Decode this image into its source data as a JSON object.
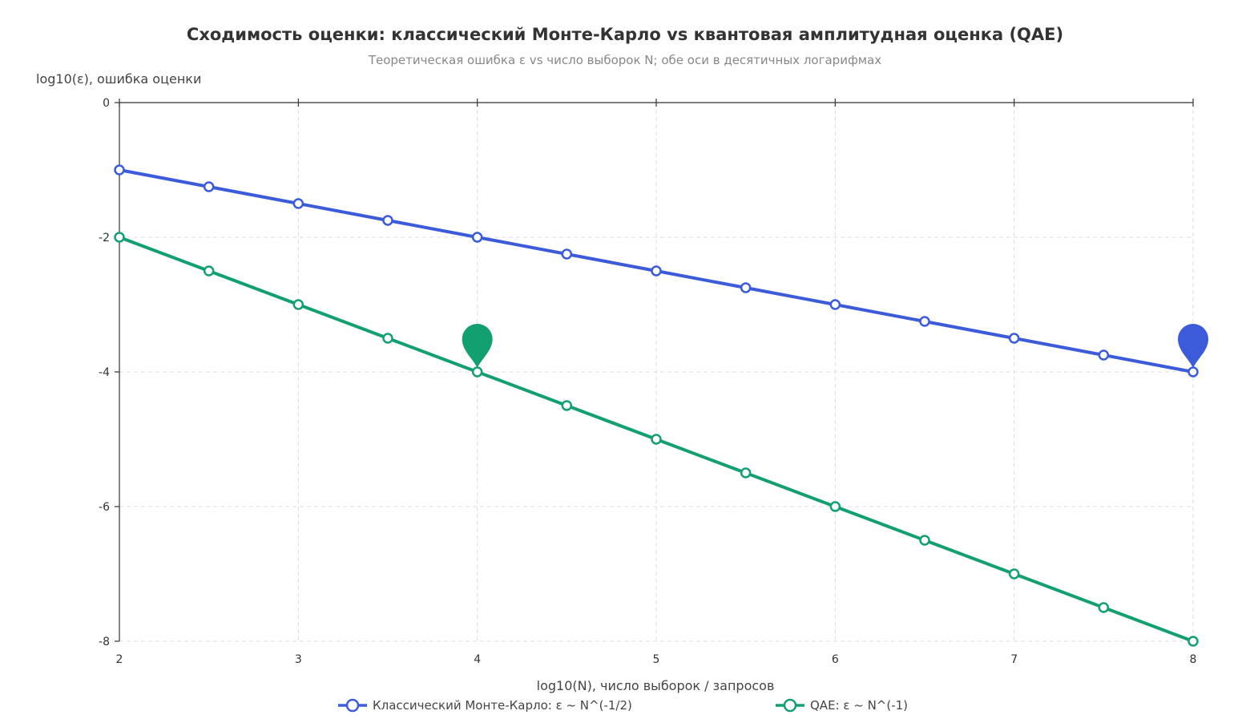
{
  "chart_data": {
    "type": "line",
    "title": "Сходимость оценки: классический Монте-Карло vs квантовая амплитудная оценка (QAE)",
    "subtitle": "Теоретическая ошибка ε vs число выборок N; обе оси в десятичных логарифмах",
    "xlabel": "log10(N), число выборок / запросов",
    "ylabel": "log10(ε), ошибка оценки",
    "xlim": [
      2,
      8
    ],
    "ylim": [
      -8,
      0
    ],
    "x_ticks": [
      2,
      3,
      4,
      5,
      6,
      7,
      8
    ],
    "y_ticks": [
      0,
      -2,
      -4,
      -6,
      -8
    ],
    "grid": true,
    "legend_position": "bottom-center",
    "x": [
      2,
      2.5,
      3,
      3.5,
      4,
      4.5,
      5,
      5.5,
      6,
      6.5,
      7,
      7.5,
      8
    ],
    "series": [
      {
        "name": "Классический Монте-Карло: ε ~ N^(-1/2)",
        "color": "#3b5bdb",
        "values": [
          -1,
          -1.25,
          -1.5,
          -1.75,
          -2,
          -2.25,
          -2.5,
          -2.75,
          -3,
          -3.25,
          -3.5,
          -3.75,
          -4
        ]
      },
      {
        "name": "QAE: ε ~ N^(-1)",
        "color": "#12a071",
        "values": [
          -2,
          -2.5,
          -3,
          -3.5,
          -4,
          -4.5,
          -5,
          -5.5,
          -6,
          -6.5,
          -7,
          -7.5,
          -8
        ]
      }
    ],
    "markers": [
      {
        "series": 1,
        "x": 4,
        "y": -4,
        "icon": "map-pin-icon",
        "color": "#12a071"
      },
      {
        "series": 0,
        "x": 8,
        "y": -4,
        "icon": "map-pin-icon",
        "color": "#3b5bdb"
      }
    ]
  }
}
